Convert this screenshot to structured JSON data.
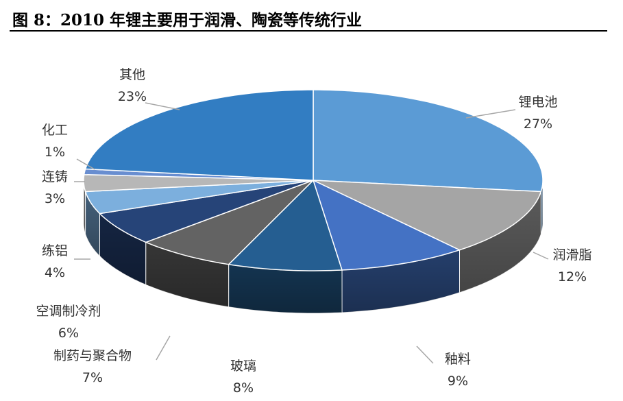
{
  "title": "图 8：2010 年锂主要用于润滑、陶瓷等传统行业",
  "chart_data": {
    "type": "pie",
    "title": "",
    "slices": [
      {
        "name": "锂电池",
        "value": 27,
        "label": "27%",
        "color": "#5b9bd5"
      },
      {
        "name": "润滑脂",
        "value": 12,
        "label": "12%",
        "color": "#a5a5a5"
      },
      {
        "name": "釉料",
        "value": 9,
        "label": "9%",
        "color": "#4472c4"
      },
      {
        "name": "玻璃",
        "value": 8,
        "label": "8%",
        "color": "#255e91"
      },
      {
        "name": "制药与聚合物",
        "value": 7,
        "label": "7%",
        "color": "#636363"
      },
      {
        "name": "空调制冷剂",
        "value": 6,
        "label": "6%",
        "color": "#264478"
      },
      {
        "name": "练铝",
        "value": 4,
        "label": "4%",
        "color": "#7cafdd"
      },
      {
        "name": "连铸",
        "value": 3,
        "label": "3%",
        "color": "#b7b7b7"
      },
      {
        "name": "化工",
        "value": 1,
        "label": "1%",
        "color": "#698ed0"
      },
      {
        "name": "其他",
        "value": 23,
        "label": "23%",
        "color": "#327dc2"
      }
    ]
  }
}
